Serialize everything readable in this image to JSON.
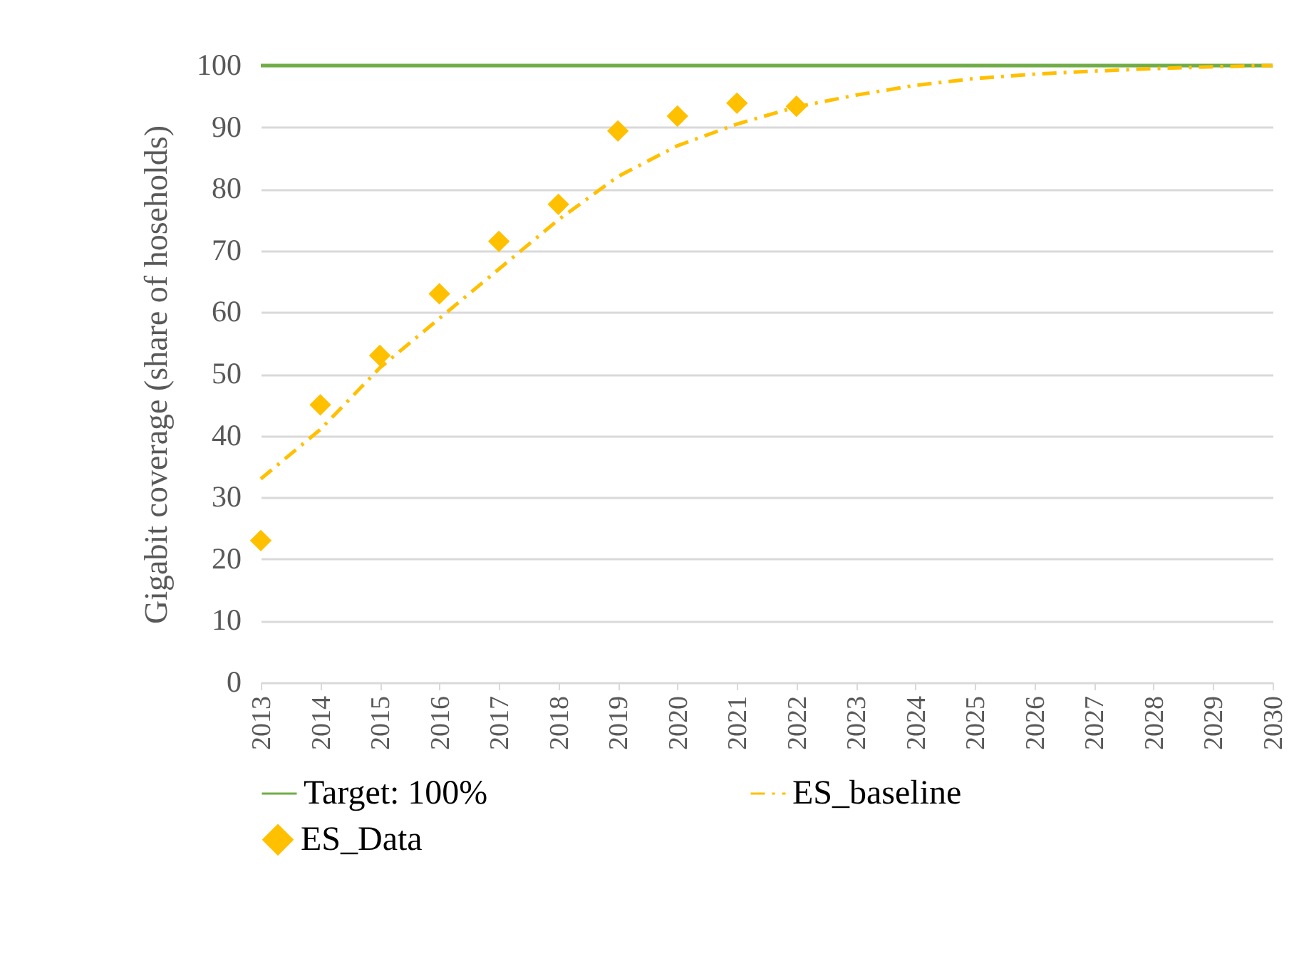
{
  "chart_data": {
    "type": "line",
    "ylabel": "Gigabit coverage  (share of hoseholds)",
    "categories": [
      "2013",
      "2014",
      "2015",
      "2016",
      "2017",
      "2018",
      "2019",
      "2020",
      "2021",
      "2022",
      "2023",
      "2024",
      "2025",
      "2026",
      "2027",
      "2028",
      "2029",
      "2030"
    ],
    "series": [
      {
        "name": "Target: 100%",
        "color": "#70ad47",
        "line_style": "solid",
        "values": [
          100,
          100,
          100,
          100,
          100,
          100,
          100,
          100,
          100,
          100,
          100,
          100,
          100,
          100,
          100,
          100,
          100,
          100
        ]
      },
      {
        "name": "ES_baseline",
        "color": "#ffc000",
        "line_style": "dashed",
        "values": [
          33,
          41,
          51,
          59,
          67,
          75,
          82,
          87,
          90.5,
          93.3,
          95.2,
          96.8,
          97.9,
          98.6,
          99.1,
          99.5,
          99.8,
          100
        ]
      },
      {
        "name": "ES_Data",
        "type": "scatter",
        "color": "#ffc000",
        "marker": "diamond",
        "values": [
          23,
          45,
          53,
          63,
          71.5,
          77.5,
          89.4,
          91.8,
          93.9,
          93.4,
          null,
          null,
          null,
          null,
          null,
          null,
          null,
          null
        ]
      }
    ],
    "ylim": [
      0,
      100
    ],
    "yticks": [
      0,
      10,
      20,
      30,
      40,
      50,
      60,
      70,
      80,
      90,
      100
    ],
    "grid": "y",
    "legend": "bottom"
  }
}
